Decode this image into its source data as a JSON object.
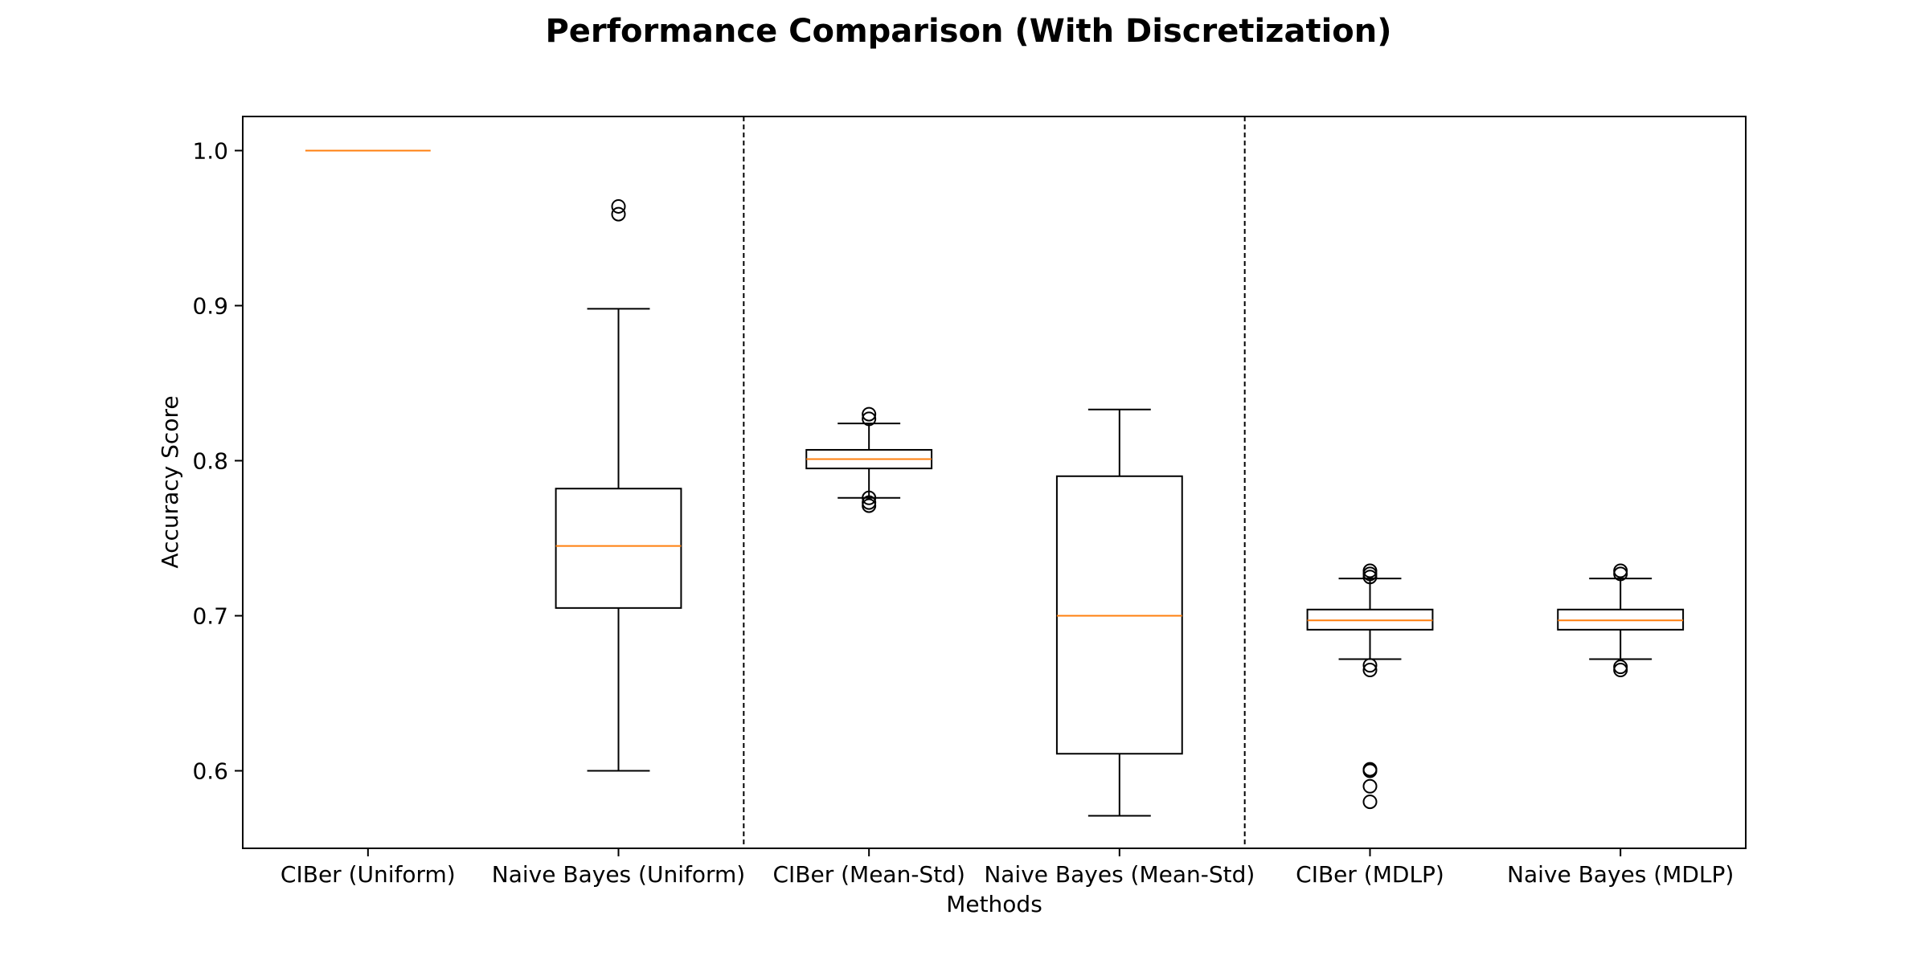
{
  "chart_data": {
    "type": "box",
    "title": "Performance Comparison (With Discretization)",
    "xlabel": "Methods",
    "ylabel": "Accuracy Score",
    "ylim": [
      0.55,
      1.022
    ],
    "yticks": [
      0.6,
      0.7,
      0.8,
      0.9,
      1.0
    ],
    "ytick_labels": [
      "0.6",
      "0.7",
      "0.8",
      "0.9",
      "1.0"
    ],
    "grid": false,
    "separators_after_category": [
      2,
      4
    ],
    "categories": [
      "CIBer (Uniform)",
      "Naive Bayes (Uniform)",
      "CIBer (Mean-Std)",
      "Naive Bayes (Mean-Std)",
      "CIBer (MDLP)",
      "Naive Bayes (MDLP)"
    ],
    "boxes": [
      {
        "whisker_low": 1.0,
        "q1": 1.0,
        "median": 1.0,
        "q3": 1.0,
        "whisker_high": 1.0,
        "outliers": []
      },
      {
        "whisker_low": 0.6,
        "q1": 0.705,
        "median": 0.745,
        "q3": 0.782,
        "whisker_high": 0.898,
        "outliers": [
          0.959,
          0.964
        ]
      },
      {
        "whisker_low": 0.776,
        "q1": 0.795,
        "median": 0.801,
        "q3": 0.807,
        "whisker_high": 0.824,
        "outliers": [
          0.771,
          0.773,
          0.776,
          0.827,
          0.83
        ]
      },
      {
        "whisker_low": 0.571,
        "q1": 0.611,
        "median": 0.7,
        "q3": 0.79,
        "whisker_high": 0.833,
        "outliers": []
      },
      {
        "whisker_low": 0.672,
        "q1": 0.691,
        "median": 0.697,
        "q3": 0.704,
        "whisker_high": 0.724,
        "outliers": [
          0.58,
          0.59,
          0.6,
          0.601,
          0.665,
          0.668,
          0.725,
          0.727,
          0.729
        ]
      },
      {
        "whisker_low": 0.672,
        "q1": 0.691,
        "median": 0.697,
        "q3": 0.704,
        "whisker_high": 0.724,
        "outliers": [
          0.665,
          0.667,
          0.727,
          0.729
        ]
      }
    ],
    "colors": {
      "box": "#000000",
      "median": "#ff7f0e",
      "separator": "#000000"
    }
  }
}
